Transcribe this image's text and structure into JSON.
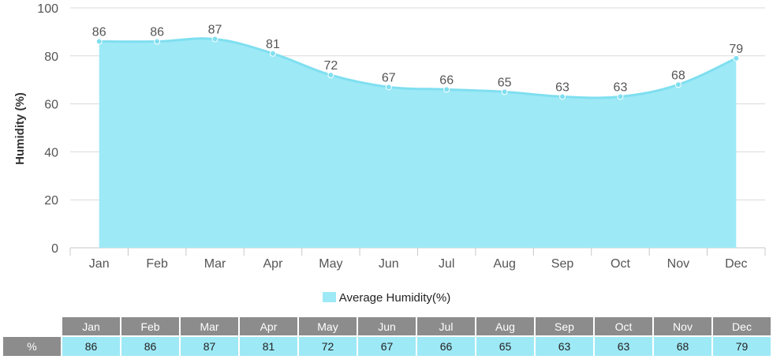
{
  "chart_data": {
    "type": "area",
    "title": "",
    "ylabel": "Humidity (%)",
    "xlabel": "",
    "categories": [
      "Jan",
      "Feb",
      "Mar",
      "Apr",
      "May",
      "Jun",
      "Jul",
      "Aug",
      "Sep",
      "Oct",
      "Nov",
      "Dec"
    ],
    "series": [
      {
        "name": "Average Humidity(%)",
        "values": [
          86,
          86,
          87,
          81,
          72,
          67,
          66,
          65,
          63,
          63,
          68,
          79
        ]
      }
    ],
    "ylim": [
      0,
      100
    ],
    "yticks": [
      0,
      20,
      40,
      60,
      80,
      100
    ],
    "grid": true,
    "legend": "bottom-center",
    "colors": {
      "fill": "#9ee9f6",
      "line": "#7fdff0",
      "grid": "#d9d9d9",
      "table_header": "#8c8c8c",
      "table_cell": "#9ee9f6"
    }
  },
  "table": {
    "row_label": "%"
  }
}
